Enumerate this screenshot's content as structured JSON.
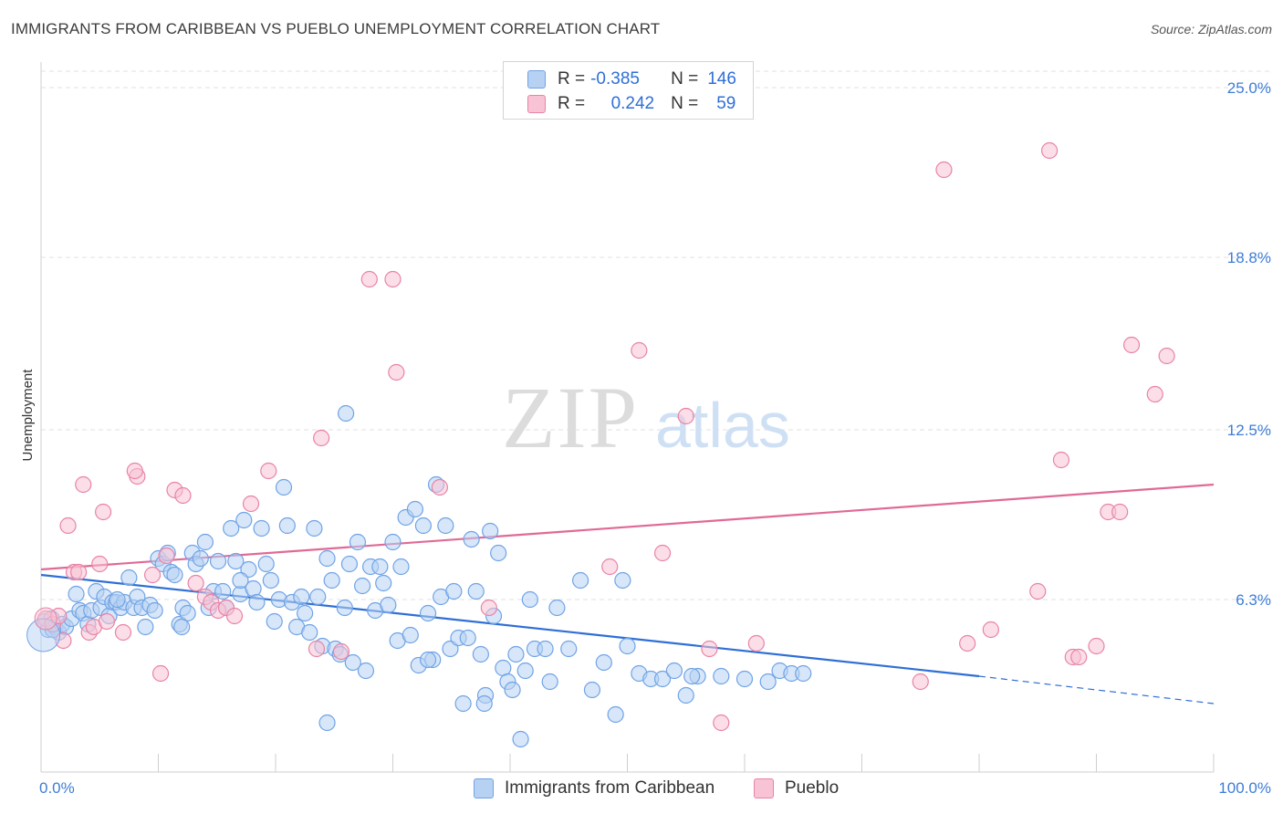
{
  "title": "IMMIGRANTS FROM CARIBBEAN VS PUEBLO UNEMPLOYMENT CORRELATION CHART",
  "source": "Source: ZipAtlas.com",
  "watermark": {
    "zip": "ZIP",
    "atlas": "atlas"
  },
  "legend": {
    "r_label": "R =",
    "n_label": "N =",
    "rows": [
      {
        "r": "-0.385",
        "n": "146",
        "color": "#6fa3e6",
        "fill": "#b7d1f3"
      },
      {
        "r": "0.242",
        "n": "59",
        "color": "#e883a6",
        "fill": "#f8c3d4"
      }
    ]
  },
  "bottom_legend": [
    {
      "label": "Immigrants from Caribbean",
      "fill": "#b7d1f3",
      "color": "#6fa3e6"
    },
    {
      "label": "Pueblo",
      "fill": "#f8c3d4",
      "color": "#e883a6"
    }
  ],
  "chart_data": {
    "type": "scatter",
    "title": "IMMIGRANTS FROM CARIBBEAN VS PUEBLO UNEMPLOYMENT CORRELATION CHART",
    "xlabel": "",
    "ylabel": "Unemployment",
    "xlim": [
      0,
      100
    ],
    "ylim": [
      0,
      25.6
    ],
    "x_tick_labels": [
      "0.0%",
      "100.0%"
    ],
    "y_ticks": [
      6.3,
      12.5,
      18.8,
      25.0
    ],
    "y_tick_labels": [
      "6.3%",
      "12.5%",
      "18.8%",
      "25.0%"
    ],
    "grid": true,
    "series": [
      {
        "name": "Immigrants from Caribbean",
        "color": "#6fa3e6",
        "fill": "#b7d1f3",
        "line_color": "#2f6fd6",
        "trend": {
          "x0": 0,
          "y0": 7.2,
          "x1": 80,
          "y1": 3.5,
          "dash_to_x": 100,
          "dash_to_y": 2.5
        },
        "points": [
          [
            0.3,
            5.5
          ],
          [
            0.6,
            5.2
          ],
          [
            0.9,
            5.6
          ],
          [
            1.2,
            5.3
          ],
          [
            1.5,
            5.1
          ],
          [
            1.8,
            5.4
          ],
          [
            2.1,
            5.3
          ],
          [
            2.6,
            5.6
          ],
          [
            3.0,
            6.5
          ],
          [
            3.3,
            5.9
          ],
          [
            3.6,
            5.8
          ],
          [
            4.0,
            5.4
          ],
          [
            4.3,
            5.9
          ],
          [
            4.7,
            6.6
          ],
          [
            5.1,
            6.0
          ],
          [
            5.4,
            6.4
          ],
          [
            5.8,
            5.7
          ],
          [
            6.1,
            6.2
          ],
          [
            6.4,
            6.2
          ],
          [
            6.8,
            6.0
          ],
          [
            7.1,
            6.2
          ],
          [
            7.5,
            7.1
          ],
          [
            7.9,
            6.0
          ],
          [
            8.2,
            6.4
          ],
          [
            8.6,
            6.0
          ],
          [
            8.9,
            5.3
          ],
          [
            9.3,
            6.1
          ],
          [
            9.7,
            5.9
          ],
          [
            10.0,
            7.8
          ],
          [
            10.4,
            7.6
          ],
          [
            10.8,
            8.0
          ],
          [
            11.1,
            7.3
          ],
          [
            11.4,
            7.2
          ],
          [
            11.8,
            5.4
          ],
          [
            12.1,
            6.0
          ],
          [
            12.5,
            5.8
          ],
          [
            12.9,
            8.0
          ],
          [
            13.2,
            7.6
          ],
          [
            13.6,
            7.8
          ],
          [
            14.0,
            8.4
          ],
          [
            14.3,
            6.0
          ],
          [
            14.7,
            6.6
          ],
          [
            15.1,
            7.7
          ],
          [
            15.5,
            6.6
          ],
          [
            15.8,
            6.0
          ],
          [
            16.2,
            8.9
          ],
          [
            16.6,
            7.7
          ],
          [
            17.0,
            6.5
          ],
          [
            17.3,
            9.2
          ],
          [
            17.7,
            7.4
          ],
          [
            18.1,
            6.7
          ],
          [
            18.4,
            6.2
          ],
          [
            18.8,
            8.9
          ],
          [
            19.2,
            7.6
          ],
          [
            19.6,
            7.0
          ],
          [
            19.9,
            5.5
          ],
          [
            20.3,
            6.3
          ],
          [
            20.7,
            10.4
          ],
          [
            21.0,
            9.0
          ],
          [
            21.4,
            6.2
          ],
          [
            21.8,
            5.3
          ],
          [
            22.2,
            6.4
          ],
          [
            22.5,
            5.8
          ],
          [
            22.9,
            5.1
          ],
          [
            23.3,
            8.9
          ],
          [
            23.6,
            6.4
          ],
          [
            24.0,
            4.6
          ],
          [
            24.4,
            7.8
          ],
          [
            24.8,
            7.0
          ],
          [
            25.1,
            4.5
          ],
          [
            25.5,
            4.3
          ],
          [
            25.9,
            6.0
          ],
          [
            26.3,
            7.6
          ],
          [
            26.6,
            4.0
          ],
          [
            27.0,
            8.4
          ],
          [
            27.4,
            6.8
          ],
          [
            27.7,
            3.7
          ],
          [
            28.1,
            7.5
          ],
          [
            28.5,
            5.9
          ],
          [
            28.9,
            7.5
          ],
          [
            29.2,
            6.9
          ],
          [
            29.6,
            6.1
          ],
          [
            30.0,
            8.4
          ],
          [
            30.4,
            4.8
          ],
          [
            30.7,
            7.5
          ],
          [
            31.1,
            9.3
          ],
          [
            31.5,
            5.0
          ],
          [
            31.9,
            9.6
          ],
          [
            32.2,
            3.9
          ],
          [
            32.6,
            9.0
          ],
          [
            33.0,
            5.8
          ],
          [
            33.4,
            4.1
          ],
          [
            33.7,
            10.5
          ],
          [
            34.1,
            6.4
          ],
          [
            34.5,
            9.0
          ],
          [
            34.9,
            4.5
          ],
          [
            35.2,
            6.6
          ],
          [
            35.6,
            4.9
          ],
          [
            36.0,
            2.5
          ],
          [
            36.4,
            4.9
          ],
          [
            36.7,
            8.5
          ],
          [
            37.1,
            6.6
          ],
          [
            37.5,
            4.3
          ],
          [
            37.9,
            2.8
          ],
          [
            38.3,
            8.8
          ],
          [
            38.6,
            5.7
          ],
          [
            39.0,
            8.0
          ],
          [
            39.4,
            3.8
          ],
          [
            39.8,
            3.3
          ],
          [
            40.2,
            3.0
          ],
          [
            40.5,
            4.3
          ],
          [
            40.9,
            1.2
          ],
          [
            41.3,
            3.7
          ],
          [
            41.7,
            6.3
          ],
          [
            42.1,
            4.5
          ],
          [
            43.0,
            4.5
          ],
          [
            44.0,
            6.0
          ],
          [
            45.0,
            4.5
          ],
          [
            46.0,
            7.0
          ],
          [
            47.0,
            3.0
          ],
          [
            48.0,
            4.0
          ],
          [
            49.0,
            2.1
          ],
          [
            50.0,
            4.6
          ],
          [
            51.0,
            3.6
          ],
          [
            52.0,
            3.4
          ],
          [
            53.0,
            3.4
          ],
          [
            54.0,
            3.7
          ],
          [
            55.0,
            2.8
          ],
          [
            56.0,
            3.5
          ],
          [
            58.0,
            3.5
          ],
          [
            60.0,
            3.4
          ],
          [
            62.0,
            3.3
          ],
          [
            63.0,
            3.7
          ],
          [
            64.0,
            3.6
          ],
          [
            65.0,
            3.6
          ],
          [
            1.0,
            5.2
          ],
          [
            6.5,
            6.3
          ],
          [
            12.0,
            5.3
          ],
          [
            17.0,
            7.0
          ],
          [
            26.0,
            13.1
          ],
          [
            24.4,
            1.8
          ],
          [
            33.0,
            4.1
          ],
          [
            37.8,
            2.5
          ],
          [
            43.4,
            3.3
          ],
          [
            49.6,
            7.0
          ],
          [
            55.5,
            3.5
          ]
        ]
      },
      {
        "name": "Pueblo",
        "color": "#e883a6",
        "fill": "#f8c3d4",
        "line_color": "#e06a96",
        "trend": {
          "x0": 0,
          "y0": 7.4,
          "x1": 100,
          "y1": 10.5
        },
        "points": [
          [
            0.4,
            5.6
          ],
          [
            1.0,
            5.4
          ],
          [
            1.5,
            5.7
          ],
          [
            1.9,
            4.8
          ],
          [
            2.3,
            9.0
          ],
          [
            2.8,
            7.3
          ],
          [
            3.2,
            7.3
          ],
          [
            3.6,
            10.5
          ],
          [
            4.1,
            5.1
          ],
          [
            4.5,
            5.3
          ],
          [
            5.0,
            7.6
          ],
          [
            5.3,
            9.5
          ],
          [
            5.6,
            5.5
          ],
          [
            7.0,
            5.1
          ],
          [
            8.2,
            10.8
          ],
          [
            9.5,
            7.2
          ],
          [
            10.2,
            3.6
          ],
          [
            10.7,
            7.9
          ],
          [
            11.4,
            10.3
          ],
          [
            12.1,
            10.1
          ],
          [
            13.2,
            6.9
          ],
          [
            14.0,
            6.4
          ],
          [
            14.5,
            6.2
          ],
          [
            15.1,
            5.9
          ],
          [
            15.8,
            6.0
          ],
          [
            16.5,
            5.7
          ],
          [
            17.9,
            9.8
          ],
          [
            19.4,
            11.0
          ],
          [
            23.5,
            4.5
          ],
          [
            23.9,
            12.2
          ],
          [
            25.6,
            4.4
          ],
          [
            28.0,
            18.0
          ],
          [
            30.0,
            18.0
          ],
          [
            30.3,
            14.6
          ],
          [
            34.0,
            10.4
          ],
          [
            38.2,
            6.0
          ],
          [
            48.5,
            7.5
          ],
          [
            51.0,
            15.4
          ],
          [
            53.0,
            8.0
          ],
          [
            55.0,
            13.0
          ],
          [
            57.0,
            4.5
          ],
          [
            58.0,
            1.8
          ],
          [
            61.0,
            4.7
          ],
          [
            75.0,
            3.3
          ],
          [
            77.0,
            22.0
          ],
          [
            79.0,
            4.7
          ],
          [
            81.0,
            5.2
          ],
          [
            85.0,
            6.6
          ],
          [
            86.0,
            22.7
          ],
          [
            87.0,
            11.4
          ],
          [
            88.0,
            4.2
          ],
          [
            88.5,
            4.2
          ],
          [
            90.0,
            4.6
          ],
          [
            91.0,
            9.5
          ],
          [
            92.0,
            9.5
          ],
          [
            93.0,
            15.6
          ],
          [
            95.0,
            13.8
          ],
          [
            96.0,
            15.2
          ],
          [
            8.0,
            11.0
          ]
        ]
      }
    ]
  }
}
